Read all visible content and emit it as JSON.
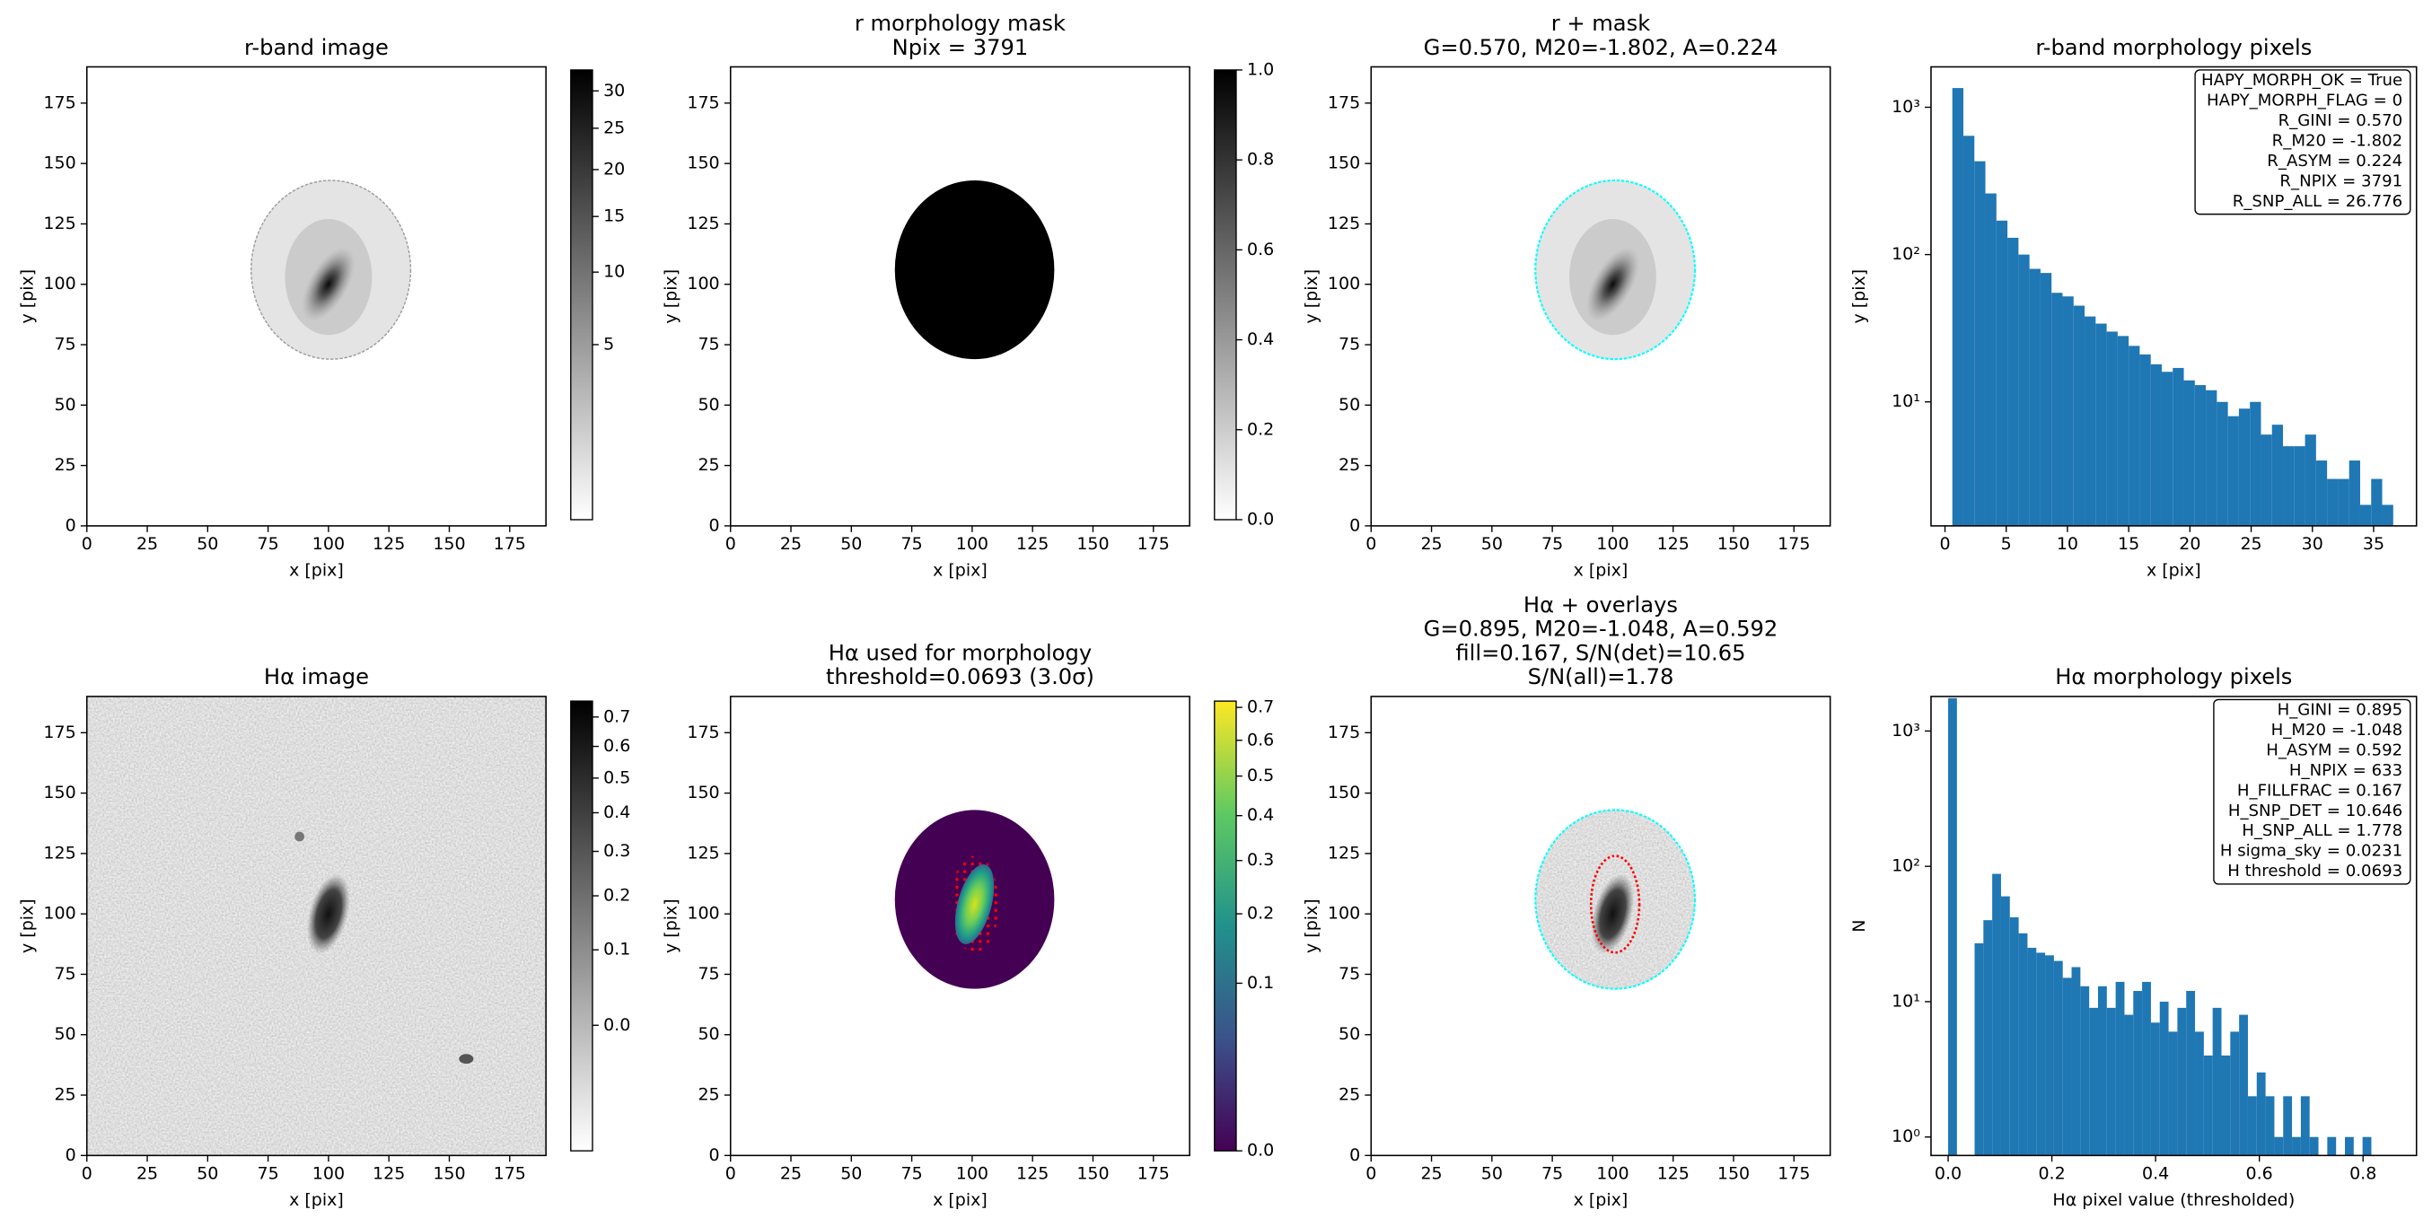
{
  "chart_data": [
    {
      "type": "image",
      "title": [
        "r-band image"
      ],
      "xlabel": "x [pix]",
      "ylabel": "y [pix]",
      "xlim": [
        0,
        190
      ],
      "ylim": [
        0,
        190
      ],
      "xticks": [
        0,
        25,
        50,
        75,
        100,
        125,
        150,
        175
      ],
      "yticks": [
        0,
        25,
        50,
        75,
        100,
        125,
        150,
        175
      ],
      "colorbar": {
        "cmap": "gray_r",
        "scale": "sqrt",
        "clim": [
          0,
          33
        ],
        "ticks": [
          5,
          10,
          15,
          20,
          25,
          30
        ]
      }
    },
    {
      "type": "image",
      "title": [
        "r morphology mask",
        "Npix = 3791"
      ],
      "xlabel": "x [pix]",
      "ylabel": "y [pix]",
      "xlim": [
        0,
        190
      ],
      "ylim": [
        0,
        190
      ],
      "xticks": [
        0,
        25,
        50,
        75,
        100,
        125,
        150,
        175
      ],
      "yticks": [
        0,
        25,
        50,
        75,
        100,
        125,
        150,
        175
      ],
      "colorbar": {
        "cmap": "gray_r",
        "scale": "linear",
        "clim": [
          0,
          1
        ],
        "ticks": [
          {
            "value": 0,
            "label": "0.0"
          },
          {
            "value": 0.2,
            "label": "0.2"
          },
          {
            "value": 0.4,
            "label": "0.4"
          },
          {
            "value": 0.6,
            "label": "0.6"
          },
          {
            "value": 0.8,
            "label": "0.8"
          },
          {
            "value": 1,
            "label": "1.0"
          }
        ]
      }
    },
    {
      "type": "image",
      "title": [
        "r + mask",
        "G=0.570, M20=-1.802, A=0.224"
      ],
      "xlabel": "x [pix]",
      "ylabel": "y [pix]",
      "xlim": [
        0,
        190
      ],
      "ylim": [
        0,
        190
      ],
      "xticks": [
        0,
        25,
        50,
        75,
        100,
        125,
        150,
        175
      ],
      "yticks": [
        0,
        25,
        50,
        75,
        100,
        125,
        150,
        175
      ]
    },
    {
      "type": "histogram",
      "title": [
        "r-band morphology pixels"
      ],
      "xlabel": "x [pix]",
      "ylabel": "y [pix]",
      "color": "#1f77b4",
      "log_y": true,
      "bins": [
        0.6,
        1.5,
        2.4,
        3.3,
        4.2,
        5.1,
        6.0,
        6.9,
        7.8,
        8.7,
        9.6,
        10.5,
        11.4,
        12.3,
        13.2,
        14.1,
        15.0,
        15.9,
        16.8,
        17.7,
        18.6,
        19.5,
        20.4,
        21.3,
        22.2,
        23.1,
        24.0,
        24.9,
        25.8,
        26.7,
        27.6,
        28.5,
        29.4,
        30.3,
        31.2,
        32.1,
        33.0,
        33.9,
        34.8,
        35.7,
        36.6
      ],
      "counts": [
        1350,
        640,
        430,
        260,
        170,
        130,
        100,
        80,
        75,
        55,
        52,
        45,
        38,
        34,
        30,
        28,
        24,
        21,
        18,
        16,
        17,
        14,
        13,
        12,
        10,
        8,
        9,
        10,
        6,
        7,
        5,
        5,
        6,
        4,
        3,
        3,
        4,
        2,
        3,
        2
      ],
      "xlim": [
        -1.14,
        38.5
      ],
      "xticks": [
        0,
        5,
        10,
        15,
        20,
        25,
        30,
        35
      ],
      "ylim": [
        1.44,
        1880
      ],
      "yticks": [
        {
          "value": 10,
          "label": "10¹"
        },
        {
          "value": 100,
          "label": "10²"
        },
        {
          "value": 1000,
          "label": "10³"
        }
      ],
      "annotation": [
        "HAPY_MORPH_OK = True",
        "HAPY_MORPH_FLAG = 0",
        "R_GINI = 0.570",
        "R_M20 = -1.802",
        "R_ASYM = 0.224",
        "R_NPIX = 3791",
        "R_SNP_ALL = 26.776"
      ]
    },
    {
      "type": "image",
      "title": [
        "Hα image"
      ],
      "xlabel": "x [pix]",
      "ylabel": "y [pix]",
      "xlim": [
        0,
        190
      ],
      "ylim": [
        0,
        190
      ],
      "xticks": [
        0,
        25,
        50,
        75,
        100,
        125,
        150,
        175
      ],
      "yticks": [
        0,
        25,
        50,
        75,
        100,
        125,
        150,
        175
      ],
      "colorbar": {
        "cmap": "gray_r",
        "scale": "sqrt",
        "clim": [
          -0.064,
          0.757
        ],
        "ticks": [
          {
            "value": 0,
            "label": "0.0"
          },
          0.1,
          0.2,
          0.3,
          0.4,
          0.5,
          0.6,
          0.7
        ]
      }
    },
    {
      "type": "image",
      "title": [
        "Hα used for morphology",
        "threshold=0.0693 (3.0σ)"
      ],
      "xlabel": "x [pix]",
      "ylabel": "y [pix]",
      "xlim": [
        0,
        190
      ],
      "ylim": [
        0,
        190
      ],
      "xticks": [
        0,
        25,
        50,
        75,
        100,
        125,
        150,
        175
      ],
      "yticks": [
        0,
        25,
        50,
        75,
        100,
        125,
        150,
        175
      ],
      "colorbar": {
        "cmap": "viridis",
        "scale": "sqrt",
        "clim": [
          0,
          0.72
        ],
        "ticks": [
          {
            "value": 0,
            "label": "0.0"
          },
          0.1,
          0.2,
          0.3,
          0.4,
          0.5,
          0.6,
          0.7
        ]
      }
    },
    {
      "type": "image",
      "title": [
        "Hα + overlays",
        "G=0.895, M20=-1.048, A=0.592",
        "fill=0.167, S/N(det)=10.65",
        "S/N(all)=1.78"
      ],
      "xlabel": "x [pix]",
      "ylabel": "y [pix]",
      "xlim": [
        0,
        190
      ],
      "ylim": [
        0,
        190
      ],
      "xticks": [
        0,
        25,
        50,
        75,
        100,
        125,
        150,
        175
      ],
      "yticks": [
        0,
        25,
        50,
        75,
        100,
        125,
        150,
        175
      ]
    },
    {
      "type": "histogram",
      "title": [
        "Hα morphology pixels"
      ],
      "xlabel": "Hα pixel value (thresholded)",
      "ylabel": "N",
      "color": "#1f77b4",
      "log_y": true,
      "bins": [
        0,
        0.017,
        0.034,
        0.051,
        0.068,
        0.085,
        0.102,
        0.119,
        0.136,
        0.153,
        0.17,
        0.187,
        0.204,
        0.221,
        0.238,
        0.255,
        0.272,
        0.289,
        0.306,
        0.323,
        0.34,
        0.357,
        0.374,
        0.391,
        0.408,
        0.425,
        0.442,
        0.459,
        0.476,
        0.493,
        0.51,
        0.527,
        0.544,
        0.561,
        0.578,
        0.595,
        0.612,
        0.629,
        0.646,
        0.663,
        0.68,
        0.697,
        0.714,
        0.731,
        0.748,
        0.765,
        0.782,
        0.799,
        0.816
      ],
      "counts": [
        1750,
        0,
        0,
        27,
        40,
        88,
        60,
        42,
        32,
        25,
        23,
        22,
        20,
        15,
        18,
        13,
        9,
        13,
        9,
        14,
        8,
        12,
        14,
        7,
        10,
        6,
        9,
        12,
        6,
        4,
        9,
        4,
        6,
        8,
        2,
        3,
        2,
        1,
        2,
        1,
        2,
        1,
        0,
        1,
        0,
        1,
        0,
        1
      ],
      "xlim": [
        -0.033,
        0.903
      ],
      "xticks": [
        {
          "value": 0,
          "label": "0.0"
        },
        0.2,
        0.4,
        0.6,
        0.8
      ],
      "ylim": [
        0.73,
        1800
      ],
      "yticks": [
        {
          "value": 1,
          "label": "10⁰"
        },
        {
          "value": 10,
          "label": "10¹"
        },
        {
          "value": 100,
          "label": "10²"
        },
        {
          "value": 1000,
          "label": "10³"
        }
      ],
      "annotation": [
        "H_GINI = 0.895",
        "H_M20 = -1.048",
        "H_ASYM = 0.592",
        "H_NPIX = 633",
        "H_FILLFRAC = 0.167",
        "H_SNP_DET = 10.646",
        "H_SNP_ALL = 1.778",
        "H sigma_sky = 0.0231",
        "H threshold = 0.0693"
      ]
    }
  ]
}
